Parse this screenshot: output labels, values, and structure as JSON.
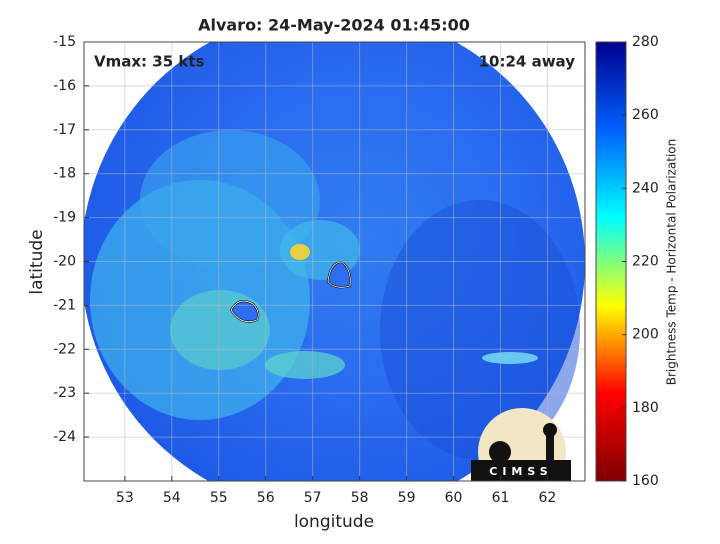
{
  "chart_data": {
    "type": "map",
    "title": "Alvaro: 24-May-2024 01:45:00",
    "annotations": [
      "Vmax: 35 kts",
      "10:24 away"
    ],
    "x_label": "longitude",
    "y_label": "latitude",
    "xlim": [
      52.13,
      62.8
    ],
    "ylim": [
      -25,
      -15
    ],
    "xticks": [
      53,
      54,
      55,
      56,
      57,
      58,
      59,
      60,
      61,
      62
    ],
    "yticks": [
      -15,
      -16,
      -17,
      -18,
      -19,
      -20,
      -21,
      -22,
      -23,
      -24
    ],
    "grid": true,
    "colorbar": {
      "label": "Brightness Temp - Horizontal Polarization",
      "lim": [
        160,
        280
      ],
      "ticks": [
        160,
        180,
        200,
        220,
        240,
        260,
        280
      ],
      "colors": [
        "#800000",
        "#ff0000",
        "#ffff00",
        "#00ffff",
        "#0060ff",
        "#00008f"
      ]
    },
    "logo": "CIMSS"
  }
}
